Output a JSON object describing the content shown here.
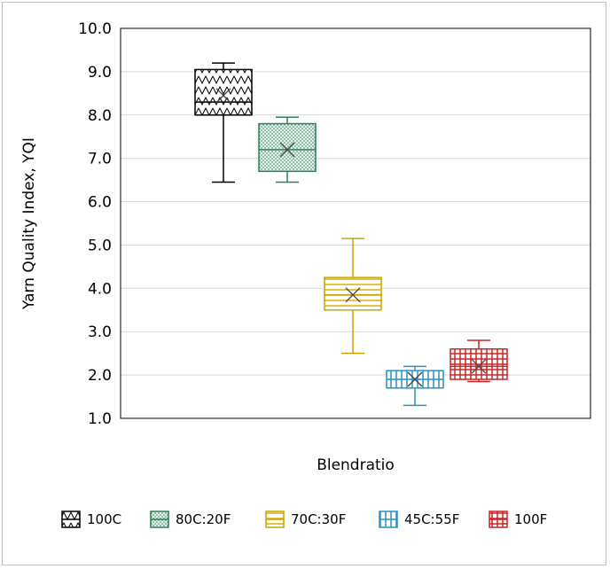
{
  "chart_data": {
    "type": "box",
    "title": "",
    "xlabel": "Blendratio",
    "ylabel": "Yarn Quality Index, YQI",
    "ylim": [
      1.0,
      10.0
    ],
    "yticks": [
      "1.0",
      "2.0",
      "3.0",
      "4.0",
      "5.0",
      "6.0",
      "7.0",
      "8.0",
      "9.0",
      "10.0"
    ],
    "grid": true,
    "legend_position": "bottom",
    "series": [
      {
        "name": "100C",
        "min": 6.45,
        "q1": 8.0,
        "median": 8.3,
        "q3": 9.05,
        "max": 9.2,
        "mean": 8.45,
        "pattern": "zigzag",
        "color": "#000000",
        "fill": "#ffffff"
      },
      {
        "name": "80C:20F",
        "min": 6.45,
        "q1": 6.7,
        "median": 7.2,
        "q3": 7.8,
        "max": 7.95,
        "mean": 7.2,
        "pattern": "dots",
        "color": "#2e7d5b",
        "fill": "#e4f2ea"
      },
      {
        "name": "70C:30F",
        "min": 2.5,
        "q1": 3.5,
        "median": 3.85,
        "q3": 4.25,
        "max": 5.15,
        "mean": 3.85,
        "pattern": "hlines",
        "color": "#c9a400",
        "fill": "#fff8d8"
      },
      {
        "name": "45C:55F",
        "min": 1.3,
        "q1": 1.7,
        "median": 1.9,
        "q3": 2.1,
        "max": 2.2,
        "mean": 1.9,
        "pattern": "vlines",
        "color": "#2a8fc0",
        "fill": "#e6f4fb"
      },
      {
        "name": "100F",
        "min": 1.85,
        "q1": 1.9,
        "median": 2.2,
        "q3": 2.6,
        "max": 2.8,
        "mean": 2.2,
        "pattern": "grid",
        "color": "#cc2222",
        "fill": "#fde8e8"
      }
    ]
  }
}
